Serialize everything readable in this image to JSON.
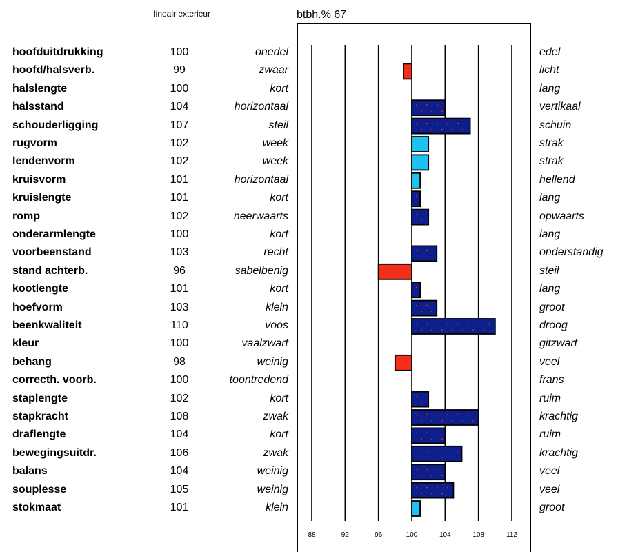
{
  "header": {
    "subtitle": "lineair exterieur",
    "btbh_label": "btbh.% 67"
  },
  "colors": {
    "high_positive": "#0d1f8c",
    "low_positive": "#1ec2f0",
    "negative": "#f2301a",
    "dot": "#ff2200"
  },
  "chart_data": {
    "type": "bar",
    "orientation": "horizontal",
    "baseline": 100,
    "xlim": [
      88,
      112
    ],
    "xticks": [
      88,
      92,
      96,
      100,
      104,
      108,
      112
    ],
    "grid": true,
    "rows": [
      {
        "trait": "hoofduitdrukking",
        "value": 100,
        "left": "onedel",
        "right": "edel"
      },
      {
        "trait": "hoofd/halsverb.",
        "value": 99,
        "left": "zwaar",
        "right": "licht"
      },
      {
        "trait": "halslengte",
        "value": 100,
        "left": "kort",
        "right": "lang"
      },
      {
        "trait": "halsstand",
        "value": 104,
        "left": "horizontaal",
        "right": "vertikaal"
      },
      {
        "trait": "schouderligging",
        "value": 107,
        "left": "steil",
        "right": "schuin"
      },
      {
        "trait": "rugvorm",
        "value": 102,
        "left": "week",
        "right": "strak"
      },
      {
        "trait": "lendenvorm",
        "value": 102,
        "left": "week",
        "right": "strak"
      },
      {
        "trait": "kruisvorm",
        "value": 101,
        "left": "horizontaal",
        "right": "hellend"
      },
      {
        "trait": "kruislengte",
        "value": 101,
        "left": "kort",
        "right": "lang"
      },
      {
        "trait": "romp",
        "value": 102,
        "left": "neerwaarts",
        "right": "opwaarts"
      },
      {
        "trait": "onderarmlengte",
        "value": 100,
        "left": "kort",
        "right": "lang"
      },
      {
        "trait": "voorbeenstand",
        "value": 103,
        "left": "recht",
        "right": "onderstandig"
      },
      {
        "trait": "stand achterb.",
        "value": 96,
        "left": "sabelbenig",
        "right": "steil"
      },
      {
        "trait": "kootlengte",
        "value": 101,
        "left": "kort",
        "right": "lang"
      },
      {
        "trait": "hoefvorm",
        "value": 103,
        "left": "klein",
        "right": "groot"
      },
      {
        "trait": "beenkwaliteit",
        "value": 110,
        "left": "voos",
        "right": "droog"
      },
      {
        "trait": "kleur",
        "value": 100,
        "left": "vaalzwart",
        "right": "gitzwart"
      },
      {
        "trait": "behang",
        "value": 98,
        "left": "weinig",
        "right": "veel"
      },
      {
        "trait": "correcth. voorb.",
        "value": 100,
        "left": "toontredend",
        "right": "frans"
      },
      {
        "trait": "staplengte",
        "value": 102,
        "left": "kort",
        "right": "ruim"
      },
      {
        "trait": "stapkracht",
        "value": 108,
        "left": "zwak",
        "right": "krachtig"
      },
      {
        "trait": "draflengte",
        "value": 104,
        "left": "kort",
        "right": "ruim"
      },
      {
        "trait": "bewegingsuitdr.",
        "value": 106,
        "left": "zwak",
        "right": "krachtig"
      },
      {
        "trait": "balans",
        "value": 104,
        "left": "weinig",
        "right": "veel"
      },
      {
        "trait": "souplesse",
        "value": 105,
        "left": "weinig",
        "right": "veel"
      },
      {
        "trait": "stokmaat",
        "value": 101,
        "left": "klein",
        "right": "groot"
      }
    ],
    "bar_colors": {
      "101": "low_positive",
      "102_rugvorm": "low_positive",
      "102_lendenvorm": "low_positive"
    }
  }
}
